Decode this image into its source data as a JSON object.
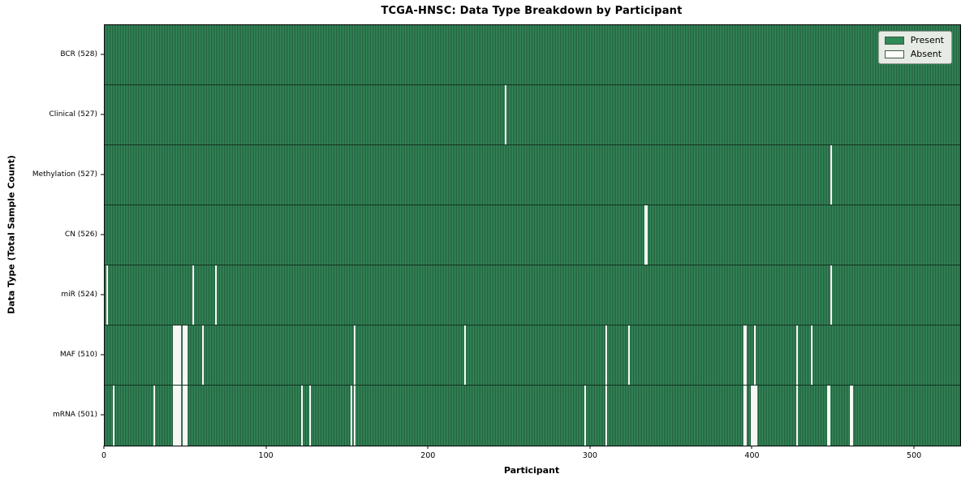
{
  "chart_data": {
    "type": "heatmap",
    "title": "TCGA-HNSC: Data Type Breakdown by Participant",
    "xlabel": "Participant",
    "ylabel": "Data Type (Total Sample Count)",
    "x_ticks": [
      0,
      100,
      200,
      300,
      400,
      500
    ],
    "xlim": [
      0,
      528
    ],
    "n_participants": 528,
    "grid": false,
    "legend_position": "upper right",
    "colors": {
      "present": "#2e8b57",
      "present_stripe_dark": "#1f5c3a",
      "absent": "#f7f7f4"
    },
    "legend": [
      {
        "label": "Present",
        "color": "#2e8b57"
      },
      {
        "label": "Absent",
        "color": "#ffffff"
      }
    ],
    "rows": [
      {
        "label": "BCR (528)",
        "data_type": "BCR",
        "total": 528,
        "absent_participants": []
      },
      {
        "label": "Clinical (527)",
        "data_type": "Clinical",
        "total": 527,
        "absent_participants": [
          247
        ]
      },
      {
        "label": "Methylation (527)",
        "data_type": "Methylation",
        "total": 527,
        "absent_participants": [
          448
        ]
      },
      {
        "label": "CN (526)",
        "data_type": "CN",
        "total": 526,
        "absent_participants": [
          333,
          334
        ]
      },
      {
        "label": "miR (524)",
        "data_type": "miR",
        "total": 524,
        "absent_participants": [
          1,
          54,
          68,
          448
        ]
      },
      {
        "label": "MAF (510)",
        "data_type": "MAF",
        "total": 510,
        "absent_participants": [
          42,
          43,
          44,
          45,
          46,
          48,
          49,
          50,
          60,
          154,
          222,
          309,
          323,
          394,
          395,
          401,
          427,
          436
        ]
      },
      {
        "label": "mRNA (501)",
        "data_type": "mRNA",
        "total": 501,
        "absent_participants": [
          5,
          30,
          42,
          43,
          44,
          45,
          46,
          48,
          49,
          50,
          121,
          126,
          152,
          154,
          296,
          309,
          394,
          395,
          399,
          400,
          401,
          402,
          427,
          446,
          447,
          460,
          461
        ]
      }
    ]
  }
}
